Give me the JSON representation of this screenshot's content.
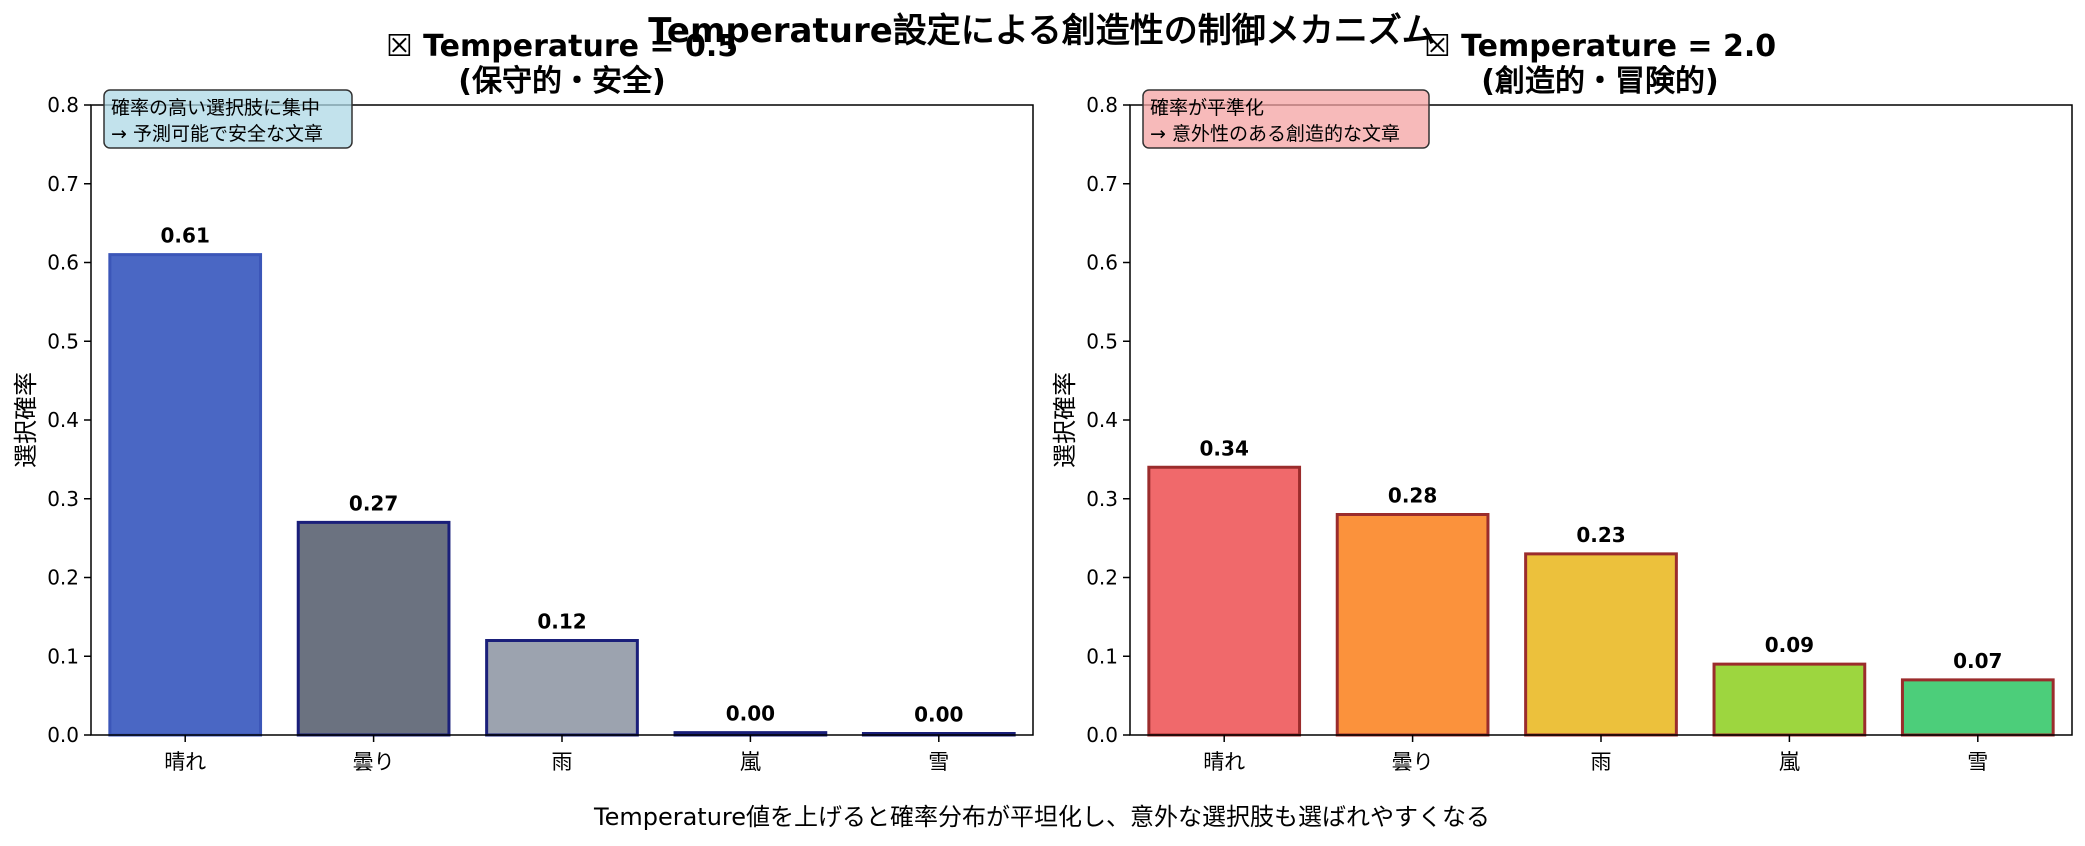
{
  "figure": {
    "suptitle": "Temperature設定による創造性の制御メカニズム",
    "footnote": "Temperature値を上げると確率分布が平坦化し、意外な選択肢も選ばれやすくなる"
  },
  "chart_data": [
    {
      "type": "bar",
      "title_line1": "☒ Temperature = 0.5",
      "title_line2": "(保守的・安全)",
      "xlabel": "",
      "ylabel": "選択確率",
      "categories": [
        "晴れ",
        "曇り",
        "雨",
        "嵐",
        "雪"
      ],
      "values": [
        0.61,
        0.27,
        0.12,
        0.003,
        0.001
      ],
      "value_labels": [
        "0.61",
        "0.27",
        "0.12",
        "0.00",
        "0.00"
      ],
      "ylim": [
        0,
        0.8
      ],
      "yticks": [
        "0.0",
        "0.1",
        "0.2",
        "0.3",
        "0.4",
        "0.5",
        "0.6",
        "0.7",
        "0.8"
      ],
      "grid": false,
      "bar_colors": [
        "#4a67c4",
        "#6b7280",
        "#9ca3af",
        "#1e3a8a",
        "#1e3a8a"
      ],
      "edge_colors": [
        "#3b56b8",
        "#1a1f7a",
        "#1a1f7a",
        "#1a1f7a",
        "#1a1f7a"
      ],
      "annotation_line1": "確率の高い選択肢に集中",
      "annotation_line2": "→ 予測可能で安全な文章",
      "annotation_bg": "#add8e6",
      "annotation_position": "top-left"
    },
    {
      "type": "bar",
      "title_line1": "☒ Temperature = 2.0",
      "title_line2": "(創造的・冒険的)",
      "xlabel": "",
      "ylabel": "選択確率",
      "categories": [
        "晴れ",
        "曇り",
        "雨",
        "嵐",
        "雪"
      ],
      "values": [
        0.34,
        0.28,
        0.23,
        0.09,
        0.07
      ],
      "value_labels": [
        "0.34",
        "0.28",
        "0.23",
        "0.09",
        "0.07"
      ],
      "ylim": [
        0,
        0.8
      ],
      "yticks": [
        "0.0",
        "0.1",
        "0.2",
        "0.3",
        "0.4",
        "0.5",
        "0.6",
        "0.7",
        "0.8"
      ],
      "grid": false,
      "bar_colors": [
        "#f0696b",
        "#fb923c",
        "#ecc13c",
        "#9dd63f",
        "#4cce7a"
      ],
      "edge_colors": [
        "#9b2c2c",
        "#9b2c2c",
        "#9b2c2c",
        "#9b2c2c",
        "#9b2c2c"
      ],
      "annotation_line1": "確率が平準化",
      "annotation_line2": "→ 意外性のある創造的な文章",
      "annotation_bg": "#f4a3a3",
      "annotation_position": "top-left"
    }
  ]
}
